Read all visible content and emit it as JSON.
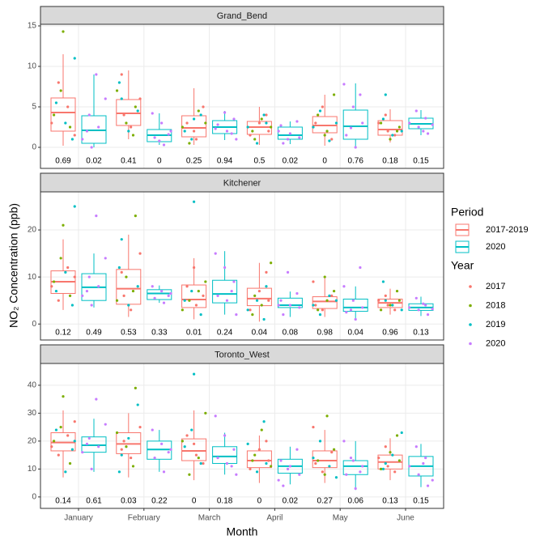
{
  "axes": {
    "x_label": "Month",
    "y_label": "NO₂ Concentration (ppb)",
    "categories": [
      "January",
      "February",
      "March",
      "April",
      "May",
      "June"
    ]
  },
  "periods_title": "Period",
  "periods": [
    {
      "name": "2017-2019",
      "color": "#F8766D"
    },
    {
      "name": "2020",
      "color": "#00BFC4"
    }
  ],
  "years_title": "Year",
  "years": [
    {
      "name": "2017",
      "color": "#F8766D"
    },
    {
      "name": "2018",
      "color": "#7CAE00"
    },
    {
      "name": "2019",
      "color": "#00BFC4"
    },
    {
      "name": "2020",
      "color": "#C77CFF"
    }
  ],
  "chart_data": [
    {
      "type": "box",
      "title": "Grand_Bend",
      "ylim": [
        -2.6,
        15.2
      ],
      "yticks": [
        0,
        5,
        10,
        15
      ],
      "grid": true,
      "boxes": [
        {
          "low": [
            0.2,
            1,
            0.3,
            0.3,
            0.2,
            0.6
          ],
          "q1": [
            2,
            2.7,
            1.3,
            1.6,
            1.8,
            1.5
          ],
          "median": [
            4.3,
            4.2,
            2.4,
            2.5,
            2.7,
            2.2
          ],
          "q3": [
            6.1,
            5.9,
            3.9,
            3.2,
            3.8,
            3.3
          ],
          "high": [
            11.5,
            9.5,
            7.3,
            5,
            6.5,
            4.7
          ],
          "annotations": [
            0.69,
            0.41,
            0.25,
            0.5,
            0,
            0.18
          ]
        },
        {
          "low": [
            0,
            0.3,
            0.9,
            0.4,
            0,
            1.5
          ],
          "q1": [
            0.5,
            0.7,
            1.7,
            1,
            1,
            2.3
          ],
          "median": [
            2.1,
            1.5,
            2.5,
            1.5,
            2.6,
            2.9
          ],
          "q3": [
            3.9,
            2.2,
            3.3,
            2.5,
            4.6,
            3.6
          ],
          "high": [
            9,
            4.2,
            4.5,
            3.2,
            7.9,
            4.6
          ],
          "annotations": [
            0.02,
            0,
            0.94,
            0.02,
            0.76,
            0.15
          ]
        }
      ],
      "points": [
        [
          [
            3,
            5,
            8,
            1.5
          ],
          [
            4,
            6,
            2.5,
            9
          ],
          [
            1,
            3,
            5,
            2
          ],
          [
            2,
            3,
            1.5,
            4
          ],
          [
            3,
            1,
            5,
            2.5
          ],
          [
            2,
            3,
            1.5,
            4
          ]
        ],
        [
          [
            14.3,
            4,
            2.5,
            7
          ],
          [
            5,
            3,
            7,
            1.5
          ],
          [
            2.5,
            4.5,
            0.5,
            3
          ],
          [
            1,
            2.5,
            3.5,
            2
          ],
          [
            2,
            4,
            6.5,
            1.5
          ],
          [
            2.5,
            1,
            3,
            2
          ]
        ],
        [
          [
            11,
            3,
            5.5,
            1
          ],
          [
            6,
            4.5,
            2,
            8
          ],
          [
            3.5,
            2,
            4,
            1
          ],
          [
            3,
            0.5,
            2.5,
            4
          ],
          [
            2.5,
            0.8,
            4.5,
            3
          ],
          [
            6.5,
            2,
            1.5,
            3.5
          ]
        ],
        [
          [
            0,
            1,
            2.5,
            4,
            6,
            9,
            2
          ],
          [
            0.3,
            1.2,
            2,
            3,
            4.2,
            1.6,
            0.8
          ],
          [
            1,
            2,
            2.8,
            3.5,
            4.3,
            2.3,
            1.7
          ],
          [
            0.5,
            1.2,
            1.7,
            2.7,
            3.2,
            1,
            2
          ],
          [
            0,
            1.5,
            3,
            5,
            7.8,
            6.5,
            2.4
          ],
          [
            1.7,
            2.5,
            3,
            3.6,
            4.5,
            2.8,
            2
          ]
        ]
      ]
    },
    {
      "type": "box",
      "title": "Kitchener",
      "ylim": [
        -3.4,
        28.1
      ],
      "yticks": [
        0,
        10,
        20
      ],
      "grid": true,
      "boxes": [
        {
          "low": [
            3,
            1.5,
            1,
            0.5,
            1.5,
            2
          ],
          "q1": [
            6.5,
            4.2,
            3.5,
            3.9,
            3.3,
            3.5
          ],
          "median": [
            9,
            7.5,
            5.2,
            5.4,
            4.8,
            4.5
          ],
          "q3": [
            11.3,
            11.6,
            8.3,
            7.6,
            5.8,
            5.3
          ],
          "high": [
            18,
            19,
            14,
            13,
            9.7,
            7.5
          ],
          "annotations": [
            0.12,
            0.53,
            0.01,
            0.04,
            0.98,
            0.96
          ]
        },
        {
          "low": [
            3.5,
            4.5,
            2,
            1.5,
            1,
            1.7
          ],
          "q1": [
            5,
            5.2,
            4.5,
            3.5,
            2.7,
            2.9
          ],
          "median": [
            7.8,
            6.5,
            6.4,
            4,
            3.5,
            3.5
          ],
          "q3": [
            10.7,
            7.3,
            9.3,
            5.5,
            5.3,
            4.3
          ],
          "high": [
            15,
            8.2,
            15.5,
            6.9,
            8,
            5.8
          ],
          "annotations": [
            0.49,
            0.33,
            0.24,
            0.08,
            0.04,
            0.13
          ]
        }
      ],
      "points": [
        [
          [
            8,
            12,
            5,
            10
          ],
          [
            6,
            15,
            3,
            11
          ],
          [
            4,
            8,
            6,
            12
          ],
          [
            5,
            7,
            3,
            11
          ],
          [
            4,
            6,
            3,
            9
          ],
          [
            4,
            5,
            3,
            6
          ]
        ],
        [
          [
            21,
            9,
            6,
            14
          ],
          [
            23,
            10,
            5,
            7
          ],
          [
            3,
            7,
            5,
            9
          ],
          [
            6,
            13,
            4,
            2
          ],
          [
            5,
            3,
            7,
            10
          ],
          [
            5,
            4,
            3,
            7
          ]
        ],
        [
          [
            25,
            11,
            7,
            4
          ],
          [
            18,
            8,
            4,
            12
          ],
          [
            26,
            5,
            2,
            7
          ],
          [
            8,
            5,
            3,
            1
          ],
          [
            4,
            6,
            2,
            5
          ],
          [
            5,
            3,
            4,
            9
          ]
        ],
        [
          [
            4,
            6,
            8,
            10,
            14,
            23,
            7
          ],
          [
            4.5,
            5.5,
            6.5,
            7,
            8,
            6
          ],
          [
            2,
            5,
            6,
            9,
            12,
            15,
            7
          ],
          [
            2,
            3.5,
            4,
            5,
            6.5,
            11,
            4
          ],
          [
            1,
            2.5,
            3.5,
            5,
            8,
            12,
            3
          ],
          [
            2,
            3,
            3.5,
            4,
            5.5,
            3.2,
            4.3
          ]
        ]
      ]
    },
    {
      "type": "box",
      "title": "Toronto_West",
      "ylim": [
        -4.1,
        47.8
      ],
      "yticks": [
        0,
        10,
        20,
        30,
        40
      ],
      "grid": true,
      "boxes": [
        {
          "low": [
            7,
            7,
            6,
            5,
            5,
            6
          ],
          "q1": [
            16.5,
            15.5,
            13,
            10.5,
            10.5,
            10
          ],
          "median": [
            19.5,
            19,
            16.5,
            13,
            13,
            12.5
          ],
          "q3": [
            23,
            23,
            20.8,
            16.5,
            16.5,
            15
          ],
          "high": [
            31,
            30,
            31,
            22,
            24,
            21
          ],
          "annotations": [
            0.14,
            0.03,
            0,
            0,
            0.27,
            0.13
          ]
        },
        {
          "low": [
            9,
            9,
            8,
            4.5,
            2.5,
            3.5
          ],
          "q1": [
            16,
            13.5,
            12,
            8.5,
            8,
            7.5
          ],
          "median": [
            18.5,
            17,
            14.5,
            11,
            11,
            11
          ],
          "q3": [
            21.5,
            20,
            18,
            13.5,
            13,
            14.5
          ],
          "high": [
            28,
            24,
            23,
            18,
            20,
            19
          ],
          "annotations": [
            0.61,
            0.22,
            0.18,
            0.02,
            0.06,
            0.15
          ]
        }
      ],
      "points": [
        [
          [
            18,
            22,
            15,
            27
          ],
          [
            20,
            25,
            14,
            17
          ],
          [
            15,
            22,
            12,
            19
          ],
          [
            13,
            17,
            10,
            20
          ],
          [
            12,
            16,
            9,
            25
          ],
          [
            11,
            14,
            9,
            18
          ]
        ],
        [
          [
            36,
            20,
            12,
            25
          ],
          [
            39,
            18,
            23,
            11
          ],
          [
            20,
            14,
            8,
            30
          ],
          [
            15,
            11,
            24,
            13
          ],
          [
            29,
            13,
            17,
            8
          ],
          [
            13,
            16,
            10,
            22
          ]
        ],
        [
          [
            20,
            9,
            24,
            17
          ],
          [
            15,
            33,
            21,
            9
          ],
          [
            44,
            18,
            12,
            24
          ],
          [
            12,
            9,
            19,
            27
          ],
          [
            14,
            11,
            20,
            7
          ],
          [
            12,
            23,
            15,
            10
          ]
        ],
        [
          [
            10,
            16,
            18,
            21,
            26,
            35,
            19
          ],
          [
            9,
            14,
            17,
            19,
            24,
            16
          ],
          [
            8,
            12,
            14,
            17,
            22,
            29,
            11
          ],
          [
            4,
            8,
            11,
            13,
            17,
            10,
            6
          ],
          [
            3,
            8,
            11,
            13,
            20,
            9,
            14
          ],
          [
            4,
            8,
            11,
            14,
            18,
            6,
            12
          ]
        ]
      ]
    }
  ]
}
